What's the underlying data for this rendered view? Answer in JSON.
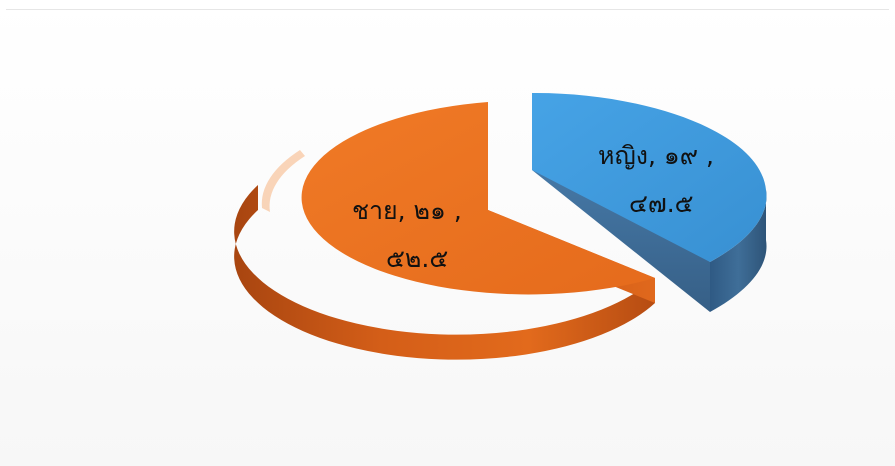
{
  "chart_data": {
    "type": "pie",
    "style": "3d-exploded",
    "title": "",
    "slices": [
      {
        "category": "ชาย",
        "value_text": "๒๑",
        "percent_text": "๕๒.๕",
        "value": 21,
        "percent": 52.5,
        "color": "#e8701f",
        "side_color": "#c85414"
      },
      {
        "category": "หญิง",
        "value_text": "๑๙",
        "percent_text": "๔๗.๕",
        "value": 19,
        "percent": 47.5,
        "color": "#3d95d8",
        "side_color": "#3a6690"
      }
    ],
    "labels": {
      "male_line1": "ชาย, ๒๑ ,",
      "male_line2": "๕๒.๕",
      "female_line1": "หญิง, ๑๙ ,",
      "female_line2": "๔๗.๕"
    }
  }
}
